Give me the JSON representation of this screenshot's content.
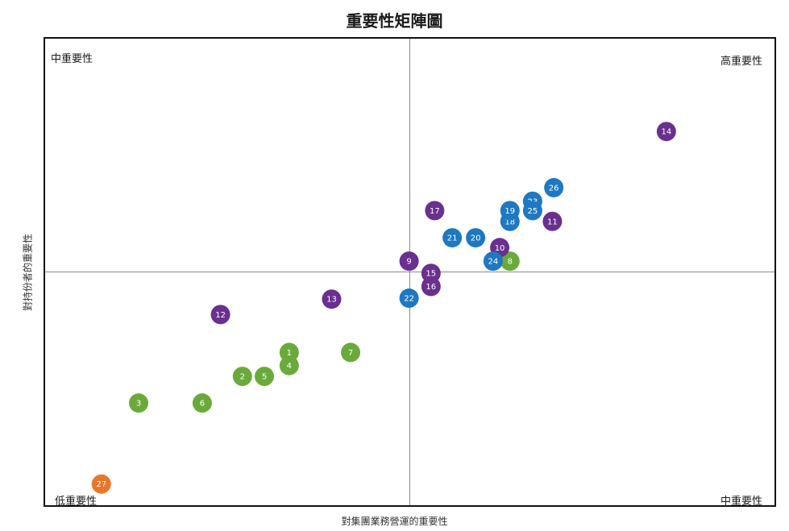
{
  "chart_data": {
    "type": "scatter",
    "title": "重要性矩陣圖",
    "xlabel": "對集團業務營運的重要性",
    "ylabel": "對持份者的重要性",
    "xlim": [
      0,
      10
    ],
    "ylim": [
      0,
      10
    ],
    "grid": false,
    "quadrant_labels": {
      "top_left": "中重要性",
      "top_right": "高重要性",
      "bottom_left": "低重要性",
      "bottom_right": "中重要性"
    },
    "colors": {
      "green": "#6aaa3a",
      "blue": "#1e78c2",
      "purple": "#6a2f8f",
      "orange": "#e9762b"
    },
    "points": [
      {
        "label": "1",
        "x": 3.35,
        "y": 3.28,
        "color": "green"
      },
      {
        "label": "2",
        "x": 2.71,
        "y": 2.77,
        "color": "green"
      },
      {
        "label": "3",
        "x": 1.29,
        "y": 2.2,
        "color": "green"
      },
      {
        "label": "4",
        "x": 3.35,
        "y": 3.0,
        "color": "green"
      },
      {
        "label": "5",
        "x": 3.01,
        "y": 2.77,
        "color": "green"
      },
      {
        "label": "6",
        "x": 2.16,
        "y": 2.2,
        "color": "green"
      },
      {
        "label": "7",
        "x": 4.19,
        "y": 3.28,
        "color": "green"
      },
      {
        "label": "8",
        "x": 6.37,
        "y": 5.23,
        "color": "green"
      },
      {
        "label": "9",
        "x": 4.99,
        "y": 5.23,
        "color": "purple"
      },
      {
        "label": "10",
        "x": 6.23,
        "y": 5.52,
        "color": "purple"
      },
      {
        "label": "11",
        "x": 6.95,
        "y": 6.08,
        "color": "purple"
      },
      {
        "label": "12",
        "x": 2.41,
        "y": 4.09,
        "color": "purple"
      },
      {
        "label": "13",
        "x": 3.93,
        "y": 4.42,
        "color": "purple"
      },
      {
        "label": "14",
        "x": 8.51,
        "y": 8.0,
        "color": "purple"
      },
      {
        "label": "15",
        "x": 5.29,
        "y": 4.97,
        "color": "purple"
      },
      {
        "label": "16",
        "x": 5.29,
        "y": 4.69,
        "color": "purple"
      },
      {
        "label": "17",
        "x": 5.34,
        "y": 6.31,
        "color": "purple"
      },
      {
        "label": "18",
        "x": 6.37,
        "y": 6.08,
        "color": "blue"
      },
      {
        "label": "19",
        "x": 6.37,
        "y": 6.31,
        "color": "blue"
      },
      {
        "label": "20",
        "x": 5.9,
        "y": 5.73,
        "color": "blue"
      },
      {
        "label": "21",
        "x": 5.58,
        "y": 5.73,
        "color": "blue"
      },
      {
        "label": "22",
        "x": 4.99,
        "y": 4.44,
        "color": "blue"
      },
      {
        "label": "23",
        "x": 6.68,
        "y": 6.51,
        "color": "blue"
      },
      {
        "label": "24",
        "x": 6.14,
        "y": 5.23,
        "color": "blue"
      },
      {
        "label": "25",
        "x": 6.68,
        "y": 6.31,
        "color": "blue"
      },
      {
        "label": "26",
        "x": 6.97,
        "y": 6.8,
        "color": "blue"
      },
      {
        "label": "27",
        "x": 0.78,
        "y": 0.47,
        "color": "orange"
      }
    ]
  }
}
